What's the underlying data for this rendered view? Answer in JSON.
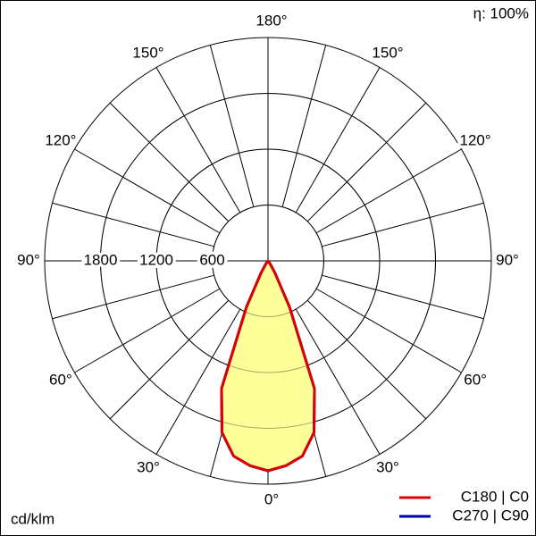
{
  "chart_data": {
    "type": "polar",
    "efficiency_label": "η: 100%",
    "unit_label": "cd/klm",
    "x": [
      0,
      5,
      10,
      15,
      20,
      25,
      30,
      35,
      40,
      45,
      50,
      55,
      60,
      65,
      70,
      75,
      80,
      85,
      90
    ],
    "series": [
      {
        "name": "C270 | C90",
        "color": "#0000aa",
        "values": [
          2256,
          2210,
          2130,
          1910,
          1460,
          550,
          150,
          40,
          0,
          0,
          0,
          0,
          0,
          0,
          0,
          0,
          0,
          0,
          0
        ]
      },
      {
        "name": "C180 | C0",
        "color": "#dd0000",
        "values": [
          2256,
          2210,
          2130,
          1910,
          1460,
          550,
          150,
          40,
          0,
          0,
          0,
          0,
          0,
          0,
          0,
          0,
          0,
          0,
          0
        ]
      }
    ],
    "fill_color": "#ffff99",
    "rlim": [
      0,
      2400
    ],
    "rticks": [
      600,
      1200,
      1800
    ],
    "angle_ticks": [
      {
        "value": 0,
        "label": "0°"
      },
      {
        "value": 30,
        "label": "30°"
      },
      {
        "value": 60,
        "label": "60°"
      },
      {
        "value": 90,
        "label": "90°"
      },
      {
        "value": 120,
        "label": "120°"
      },
      {
        "value": 150,
        "label": "150°"
      },
      {
        "value": 180,
        "label": "180°"
      }
    ]
  }
}
